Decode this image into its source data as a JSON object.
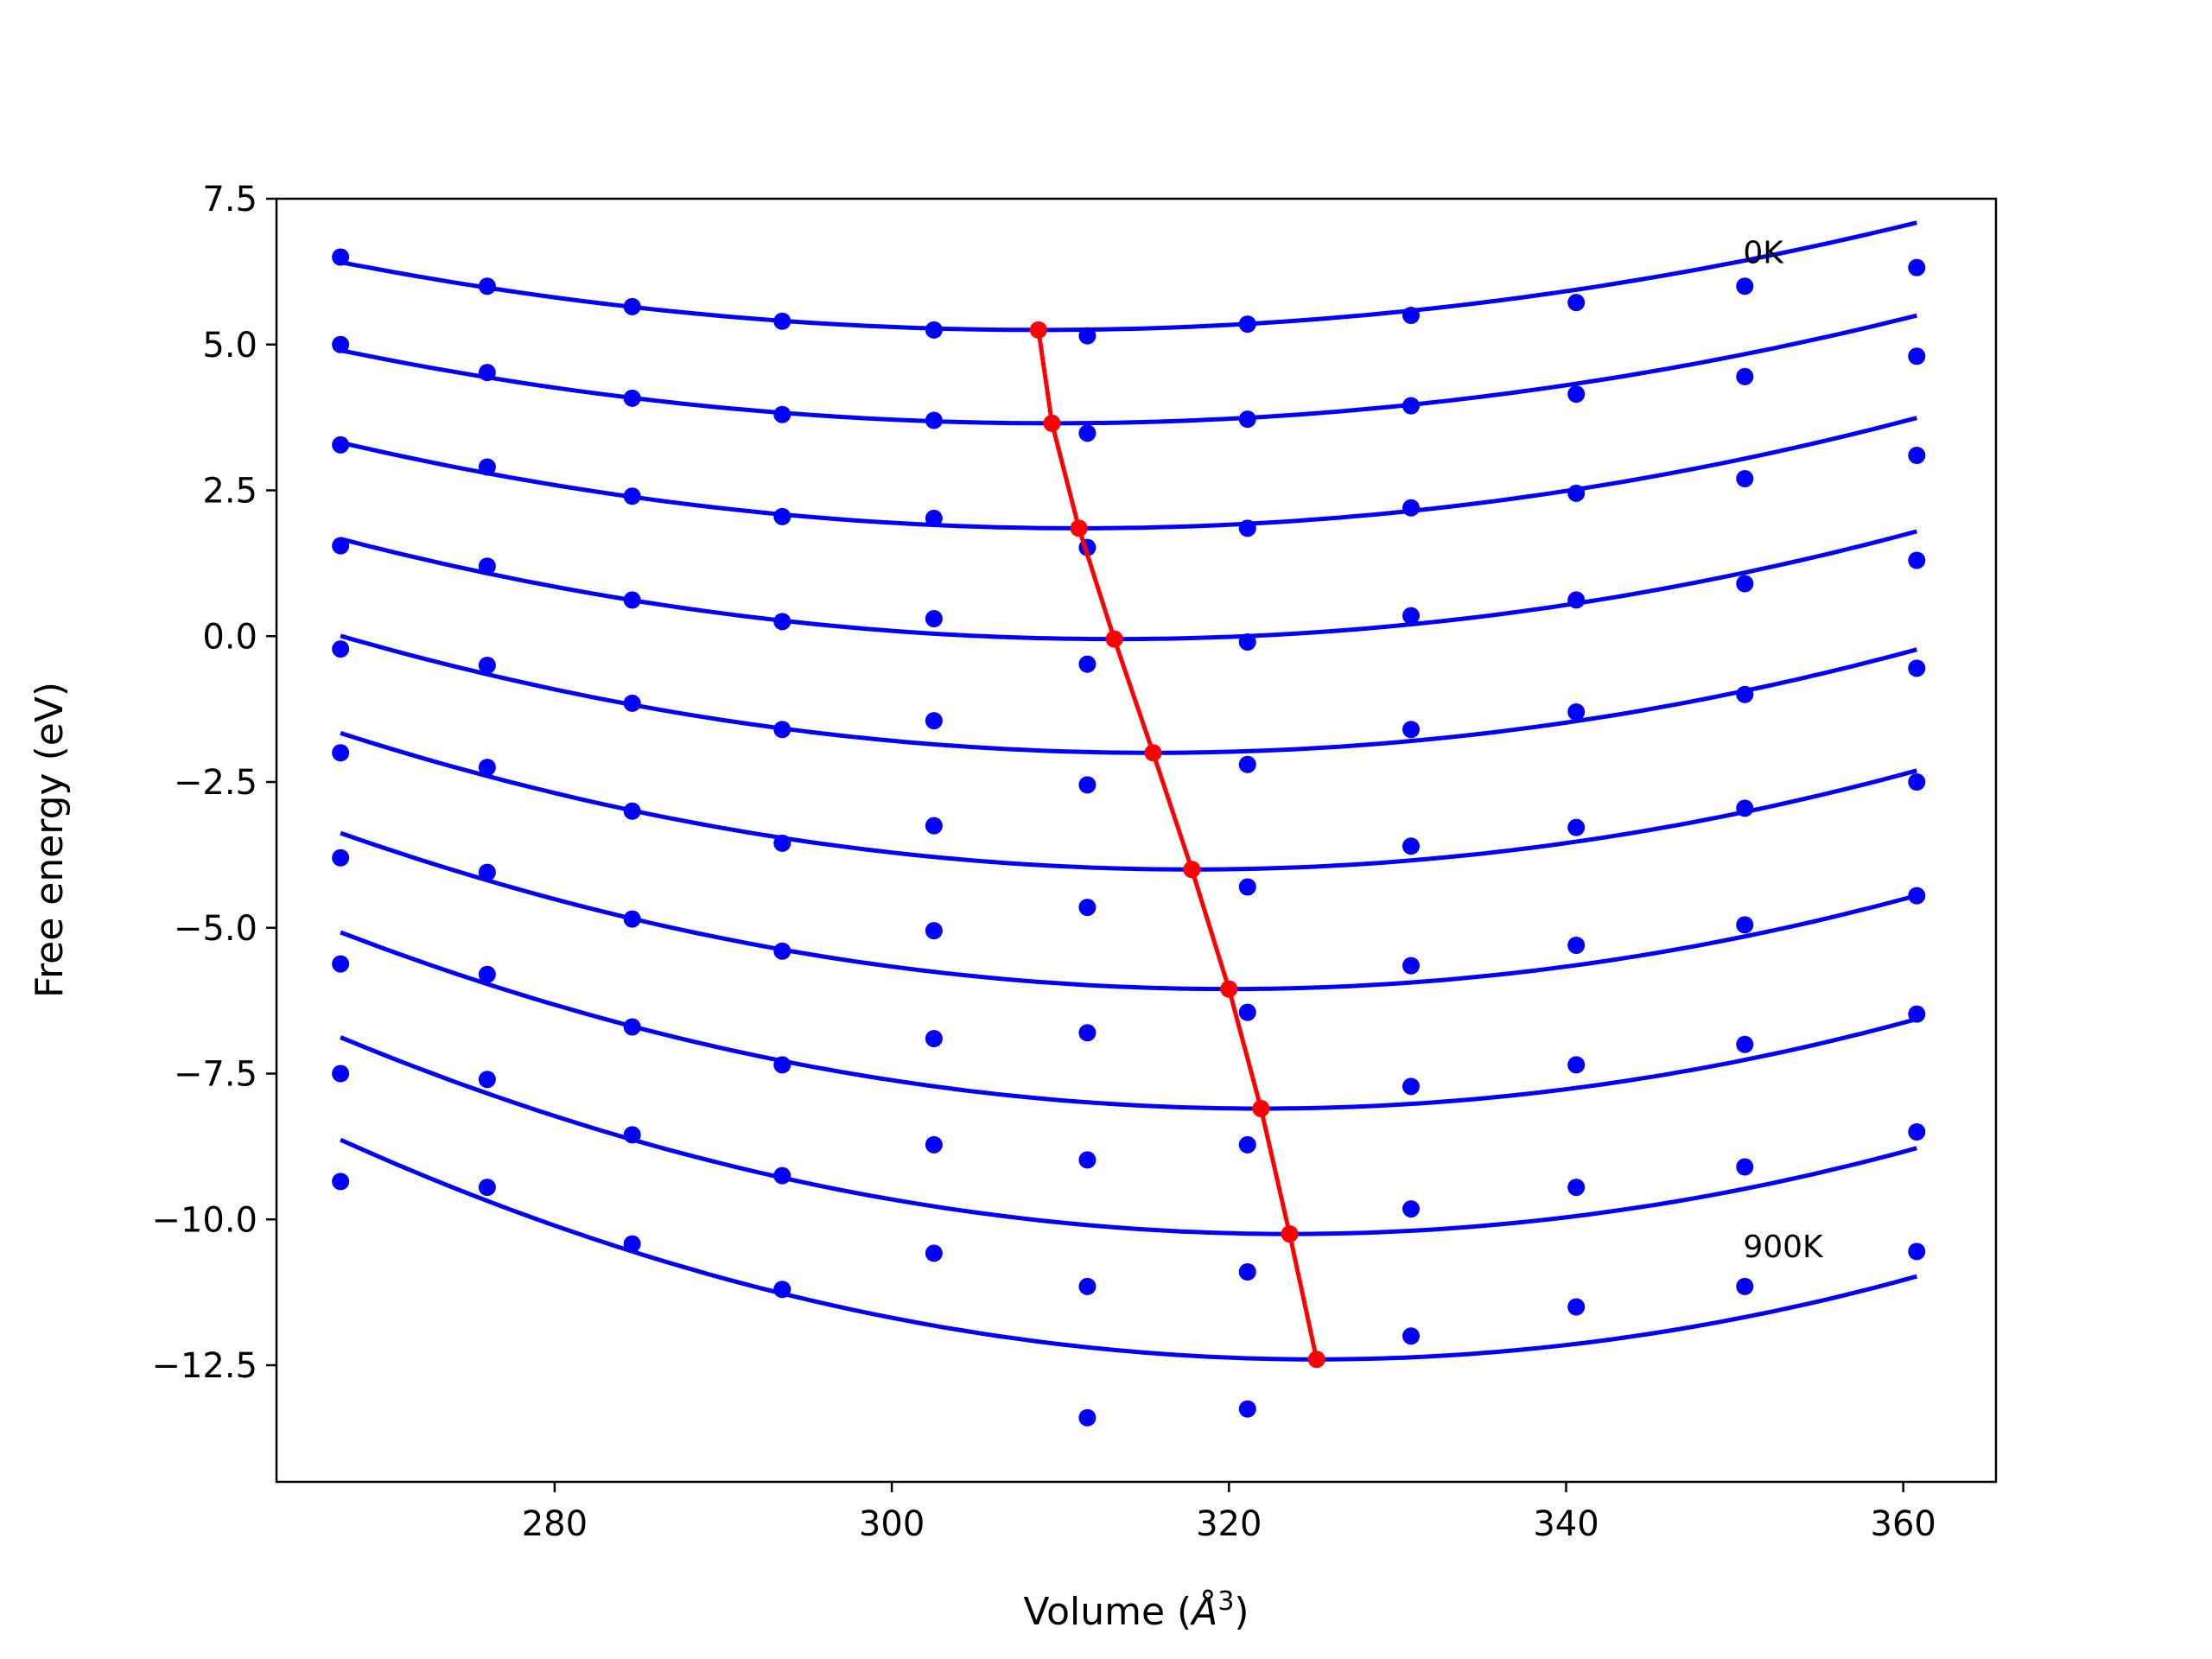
{
  "chart_data": {
    "type": "line",
    "xlabel": "Volume (",
    "xlabel_unit_base": "Å",
    "xlabel_unit_exp": "3",
    "xlabel_close": ")",
    "ylabel": "Free energy (eV)",
    "xlim": [
      263.5,
      365.5
    ],
    "ylim": [
      -14.5,
      7.5
    ],
    "x_ticks": [
      280,
      300,
      320,
      340,
      360
    ],
    "y_ticks": [
      7.5,
      5.0,
      2.5,
      0.0,
      -2.5,
      -5.0,
      -7.5,
      -10.0,
      -12.5
    ],
    "x_tick_labels": [
      "280",
      "300",
      "320",
      "340",
      "360"
    ],
    "y_tick_labels": [
      "7.5",
      "5.0",
      "2.5",
      "0.0",
      "−2.5",
      "−5.0",
      "−7.5",
      "−10.0",
      "−12.5"
    ],
    "grid": false,
    "colors": {
      "fit": "#0000ff",
      "points": "#0000ff",
      "minima": "#ff0000"
    },
    "x": [
      267.3,
      276.0,
      284.6,
      293.5,
      302.5,
      311.6,
      321.1,
      330.8,
      340.6,
      350.6,
      360.8
    ],
    "series": [
      {
        "points": [
          6.5,
          6.0,
          5.65,
          5.4,
          5.25,
          5.15,
          5.35,
          5.5,
          5.72,
          6.0,
          6.32
        ],
        "fit": {
          "vmin": 308.7,
          "emin": 5.25,
          "a": 0.000678
        }
      },
      {
        "points": [
          5.0,
          4.52,
          4.08,
          3.8,
          3.7,
          3.48,
          3.72,
          3.95,
          4.15,
          4.45,
          4.8
        ],
        "fit": {
          "vmin": 309.5,
          "emin": 3.65,
          "a": 0.000702
        }
      },
      {
        "points": [
          3.28,
          2.9,
          2.4,
          2.05,
          2.02,
          1.52,
          1.85,
          2.2,
          2.45,
          2.7,
          3.1
        ],
        "fit": {
          "vmin": 311.1,
          "emin": 1.85,
          "a": 0.000766
        }
      },
      {
        "points": [
          1.55,
          1.2,
          0.62,
          0.25,
          0.3,
          -0.48,
          -0.1,
          0.35,
          0.62,
          0.9,
          1.3
        ],
        "fit": {
          "vmin": 313.2,
          "emin": -0.05,
          "a": 0.000815
        }
      },
      {
        "points": [
          -0.22,
          -0.5,
          -1.15,
          -1.6,
          -1.45,
          -2.55,
          -2.2,
          -1.6,
          -1.3,
          -1.0,
          -0.55
        ],
        "fit": {
          "vmin": 315.5,
          "emin": -2.0,
          "a": 0.000863
        }
      },
      {
        "points": [
          -2.0,
          -2.25,
          -3.0,
          -3.55,
          -3.25,
          -4.65,
          -4.3,
          -3.6,
          -3.28,
          -2.95,
          -2.5
        ],
        "fit": {
          "vmin": 317.8,
          "emin": -4.0,
          "a": 0.000917
        }
      },
      {
        "points": [
          -3.8,
          -4.05,
          -4.85,
          -5.4,
          -5.05,
          -6.8,
          -6.45,
          -5.65,
          -5.3,
          -4.95,
          -4.45
        ],
        "fit": {
          "vmin": 320.0,
          "emin": -6.05,
          "a": 0.000963
        }
      },
      {
        "points": [
          -5.62,
          -5.8,
          -6.7,
          -7.35,
          -6.9,
          -8.98,
          -8.72,
          -7.72,
          -7.35,
          -7.0,
          -6.48
        ],
        "fit": {
          "vmin": 321.9,
          "emin": -8.1,
          "a": 0.001014
        }
      },
      {
        "points": [
          -7.5,
          -7.6,
          -8.55,
          -9.25,
          -8.72,
          -11.15,
          -10.9,
          -9.82,
          -9.45,
          -9.1,
          -8.5
        ],
        "fit": {
          "vmin": 323.6,
          "emin": -10.25,
          "a": 0.001064
        }
      },
      {
        "points": [
          -9.35,
          -9.45,
          -10.42,
          -11.2,
          -10.58,
          -13.4,
          -13.25,
          -12.0,
          -11.5,
          -11.15,
          -10.55
        ],
        "fit": {
          "vmin": 325.2,
          "emin": -12.4,
          "a": 0.001123
        }
      }
    ],
    "x_fit_range": [
      267.3,
      360.8
    ],
    "minima_line": {
      "x": [
        308.7,
        309.5,
        311.1,
        313.2,
        315.5,
        317.8,
        320.0,
        321.9,
        323.6,
        325.2
      ],
      "y": [
        5.25,
        3.65,
        1.85,
        -0.05,
        -2.0,
        -4.0,
        -6.05,
        -8.1,
        -10.25,
        -12.4
      ]
    },
    "annotations": [
      {
        "text": "0K",
        "x": 350.5,
        "y": 6.4
      },
      {
        "text": "900K",
        "x": 350.5,
        "y": -10.65
      }
    ]
  }
}
